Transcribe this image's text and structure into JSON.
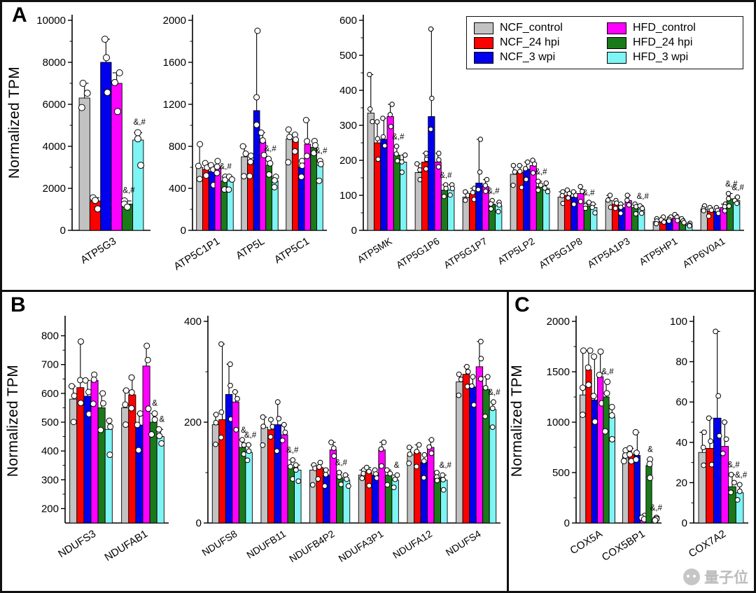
{
  "panels": {
    "a": "A",
    "b": "B",
    "c": "C"
  },
  "ylabel": "Normalized TPM",
  "legend": {
    "entries": [
      {
        "label": "NCF_control",
        "color": "#c2c2c2"
      },
      {
        "label": "NCF_24 hpi",
        "color": "#fe0000"
      },
      {
        "label": "NCF_3 wpi",
        "color": "#0000ee"
      },
      {
        "label": "HFD_control",
        "color": "#ff00ff"
      },
      {
        "label": "HFD_24 hpi",
        "color": "#1a7a1a"
      },
      {
        "label": "HFD_3 wpi",
        "color": "#7ff4f4"
      }
    ]
  },
  "watermark": {
    "text": "量子位",
    "icon": "qbitai-logo"
  },
  "chart_data": [
    {
      "panel": "A",
      "type": "bar",
      "categories": [
        "ATP5G3"
      ],
      "ylim": [
        0,
        10000
      ],
      "yticks": [
        0,
        2000,
        4000,
        6000,
        8000,
        10000
      ],
      "series": [
        {
          "name": "NCF_control",
          "values": [
            6300
          ],
          "err": [
            700
          ]
        },
        {
          "name": "NCF_24 hpi",
          "values": [
            1400
          ],
          "err": [
            150
          ]
        },
        {
          "name": "NCF_3 wpi",
          "values": [
            8000
          ],
          "err": [
            1100
          ]
        },
        {
          "name": "HFD_control",
          "values": [
            7000
          ],
          "err": [
            500
          ]
        },
        {
          "name": "HFD_24 hpi",
          "values": [
            1250
          ],
          "err": [
            150
          ]
        },
        {
          "name": "HFD_3 wpi",
          "values": [
            4300
          ],
          "err": [
            350
          ]
        }
      ],
      "annotations": [
        {
          "category": "ATP5G3",
          "series": "HFD_24 hpi",
          "text": "&,#"
        },
        {
          "category": "ATP5G3",
          "series": "HFD_3 wpi",
          "text": "&,#"
        }
      ]
    },
    {
      "panel": "A",
      "type": "bar",
      "categories": [
        "ATP5C1P1",
        "ATP5L",
        "ATP5C1"
      ],
      "ylim": [
        0,
        2000
      ],
      "yticks": [
        0,
        400,
        800,
        1200,
        1600,
        2000
      ],
      "series": [
        {
          "name": "NCF_control",
          "values": [
            600,
            700,
            870
          ],
          "err": [
            220,
            100,
            90
          ]
        },
        {
          "name": "NCF_24 hpi",
          "values": [
            580,
            640,
            850
          ],
          "err": [
            60,
            70,
            60
          ]
        },
        {
          "name": "NCF_3 wpi",
          "values": [
            560,
            1140,
            600
          ],
          "err": [
            60,
            760,
            60
          ]
        },
        {
          "name": "HFD_control",
          "values": [
            600,
            840,
            820
          ],
          "err": [
            60,
            90,
            230
          ]
        },
        {
          "name": "HFD_24 hpi",
          "values": [
            470,
            620,
            790
          ],
          "err": [
            40,
            60,
            60
          ]
        },
        {
          "name": "HFD_3 wpi",
          "values": [
            470,
            470,
            620
          ],
          "err": [
            40,
            40,
            40
          ]
        }
      ],
      "annotations": [
        {
          "category": "ATP5C1P1",
          "series": "HFD_24 hpi",
          "text": "&,#"
        },
        {
          "category": "ATP5L",
          "series": "HFD_24 hpi",
          "text": "&,#"
        },
        {
          "category": "ATP5C1",
          "series": "HFD_3 wpi",
          "text": "&,#"
        }
      ]
    },
    {
      "panel": "A",
      "type": "bar",
      "categories": [
        "ATP5MK",
        "ATP5G1P6",
        "ATP5G1P7",
        "ATP5LP2",
        "ATP5G1P8",
        "ATP5A1P3",
        "ATP5HP1",
        "ATP6V0A1"
      ],
      "ylim": [
        0,
        600
      ],
      "yticks": [
        0,
        100,
        200,
        300,
        400,
        500,
        600
      ],
      "series": [
        {
          "name": "NCF_control",
          "values": [
            335,
            165,
            95,
            160,
            95,
            85,
            25,
            60
          ],
          "err": [
            110,
            25,
            15,
            25,
            15,
            15,
            8,
            10
          ]
        },
        {
          "name": "NCF_24 hpi",
          "values": [
            250,
            195,
            105,
            165,
            100,
            75,
            30,
            55
          ],
          "err": [
            60,
            25,
            15,
            20,
            15,
            10,
            8,
            10
          ]
        },
        {
          "name": "NCF_3 wpi",
          "values": [
            260,
            325,
            135,
            175,
            95,
            65,
            30,
            55
          ],
          "err": [
            60,
            250,
            125,
            20,
            15,
            10,
            8,
            10
          ]
        },
        {
          "name": "HFD_control",
          "values": [
            325,
            195,
            125,
            185,
            105,
            85,
            35,
            65
          ],
          "err": [
            35,
            25,
            20,
            15,
            20,
            15,
            10,
            10
          ]
        },
        {
          "name": "HFD_24 hpi",
          "values": [
            215,
            115,
            75,
            125,
            70,
            65,
            25,
            90
          ],
          "err": [
            25,
            15,
            10,
            15,
            10,
            10,
            8,
            15
          ]
        },
        {
          "name": "HFD_3 wpi",
          "values": [
            195,
            115,
            70,
            120,
            65,
            60,
            15,
            85
          ],
          "err": [
            20,
            15,
            10,
            15,
            10,
            10,
            5,
            10
          ]
        }
      ],
      "annotations": [
        {
          "category": "ATP5MK",
          "series": "HFD_24 hpi",
          "text": "&,#"
        },
        {
          "category": "ATP5G1P6",
          "series": "HFD_24 hpi",
          "text": "&,#"
        },
        {
          "category": "ATP5G1P7",
          "series": "HFD_24 hpi",
          "text": "&,#"
        },
        {
          "category": "ATP5LP2",
          "series": "HFD_24 hpi",
          "text": "&,#"
        },
        {
          "category": "ATP5G1P8",
          "series": "HFD_24 hpi",
          "text": "&,#"
        },
        {
          "category": "ATP5A1P3",
          "series": "HFD_3 wpi",
          "text": "&,#"
        },
        {
          "category": "ATP6V0A1",
          "series": "HFD_24 hpi",
          "text": "&,#"
        },
        {
          "category": "ATP6V0A1",
          "series": "HFD_3 wpi",
          "text": "&,#"
        }
      ]
    },
    {
      "panel": "B",
      "type": "bar",
      "categories": [
        "NDUFS3",
        "NDUFAB1"
      ],
      "ylim": [
        150,
        850
      ],
      "yticks": [
        200,
        300,
        400,
        500,
        600,
        700,
        800
      ],
      "series": [
        {
          "name": "NCF_control",
          "values": [
            580,
            550
          ],
          "err": [
            45,
            60
          ]
        },
        {
          "name": "NCF_24 hpi",
          "values": [
            620,
            595
          ],
          "err": [
            160,
            60
          ]
        },
        {
          "name": "NCF_3 wpi",
          "values": [
            590,
            490
          ],
          "err": [
            55,
            40
          ]
        },
        {
          "name": "HFD_control",
          "values": [
            645,
            695
          ],
          "err": [
            20,
            70
          ]
        },
        {
          "name": "HFD_24 hpi",
          "values": [
            550,
            500
          ],
          "err": [
            50,
            30
          ]
        },
        {
          "name": "HFD_3 wpi",
          "values": [
            475,
            450
          ],
          "err": [
            30,
            25
          ]
        }
      ],
      "annotations": [
        {
          "category": "NDUFAB1",
          "series": "HFD_24 hpi",
          "text": "&"
        },
        {
          "category": "NDUFAB1",
          "series": "HFD_3 wpi",
          "text": "&"
        }
      ]
    },
    {
      "panel": "B",
      "type": "bar",
      "categories": [
        "NDUFS8",
        "NDUFB11",
        "NDUFB4P2",
        "NDUFA3P1",
        "NDUFA12",
        "NDUFS4"
      ],
      "ylim": [
        0,
        400
      ],
      "yticks": [
        0,
        200,
        400
      ],
      "series": [
        {
          "name": "NCF_control",
          "values": [
            195,
            190,
            105,
            95,
            135,
            280
          ],
          "err": [
            20,
            20,
            10,
            10,
            15,
            15
          ]
        },
        {
          "name": "NCF_24 hpi",
          "values": [
            205,
            185,
            110,
            100,
            140,
            295
          ],
          "err": [
            150,
            20,
            10,
            10,
            15,
            15
          ]
        },
        {
          "name": "NCF_3 wpi",
          "values": [
            255,
            195,
            95,
            95,
            120,
            270
          ],
          "err": [
            60,
            45,
            10,
            10,
            15,
            20
          ]
        },
        {
          "name": "HFD_control",
          "values": [
            240,
            175,
            145,
            145,
            150,
            310
          ],
          "err": [
            20,
            20,
            15,
            15,
            15,
            50
          ]
        },
        {
          "name": "HFD_24 hpi",
          "values": [
            150,
            110,
            90,
            95,
            90,
            265
          ],
          "err": [
            15,
            15,
            10,
            10,
            10,
            25
          ]
        },
        {
          "name": "HFD_3 wpi",
          "values": [
            140,
            105,
            85,
            85,
            85,
            225
          ],
          "err": [
            15,
            10,
            10,
            10,
            10,
            15
          ]
        }
      ],
      "annotations": [
        {
          "category": "NDUFS8",
          "series": "HFD_24 hpi",
          "text": "&"
        },
        {
          "category": "NDUFS8",
          "series": "HFD_3 wpi",
          "text": "&,#"
        },
        {
          "category": "NDUFB11",
          "series": "HFD_24 hpi",
          "text": "&,#"
        },
        {
          "category": "NDUFB4P2",
          "series": "HFD_24 hpi",
          "text": "&,#"
        },
        {
          "category": "NDUFA3P1",
          "series": "HFD_3 wpi",
          "text": "&"
        },
        {
          "category": "NDUFA12",
          "series": "HFD_3 wpi",
          "text": "&,#"
        },
        {
          "category": "NDUFS4",
          "series": "HFD_3 wpi",
          "text": "&,#"
        }
      ]
    },
    {
      "panel": "C",
      "type": "bar",
      "categories": [
        "COX5A",
        "COX5BP1"
      ],
      "ylim": [
        0,
        2000
      ],
      "yticks": [
        0,
        500,
        1000,
        1500,
        2000
      ],
      "series": [
        {
          "name": "NCF_control",
          "values": [
            1270,
            660
          ],
          "err": [
            440,
            60
          ]
        },
        {
          "name": "NCF_24 hpi",
          "values": [
            1520,
            680
          ],
          "err": [
            190,
            60
          ]
        },
        {
          "name": "NCF_3 wpi",
          "values": [
            1220,
            670
          ],
          "err": [
            430,
            230
          ]
        },
        {
          "name": "HFD_control",
          "values": [
            1450,
            50
          ],
          "err": [
            250,
            20
          ]
        },
        {
          "name": "HFD_24 hpi",
          "values": [
            1250,
            570
          ],
          "err": [
            150,
            60
          ]
        },
        {
          "name": "HFD_3 wpi",
          "values": [
            1050,
            35
          ],
          "err": [
            100,
            15
          ]
        }
      ],
      "annotations": [
        {
          "category": "COX5A",
          "series": "HFD_24 hpi",
          "text": "&,#"
        },
        {
          "category": "COX5BP1",
          "series": "HFD_24 hpi",
          "text": "&"
        },
        {
          "category": "COX5BP1",
          "series": "HFD_3 wpi",
          "text": "&,#"
        }
      ]
    },
    {
      "panel": "C",
      "type": "bar",
      "categories": [
        "COX7A2"
      ],
      "ylim": [
        0,
        100
      ],
      "yticks": [
        0,
        20,
        40,
        60,
        80,
        100
      ],
      "series": [
        {
          "name": "NCF_control",
          "values": [
            35
          ],
          "err": [
            10
          ]
        },
        {
          "name": "NCF_24 hpi",
          "values": [
            37
          ],
          "err": [
            15
          ]
        },
        {
          "name": "NCF_3 wpi",
          "values": [
            52
          ],
          "err": [
            43
          ]
        },
        {
          "name": "HFD_control",
          "values": [
            38
          ],
          "err": [
            12
          ]
        },
        {
          "name": "HFD_24 hpi",
          "values": [
            18
          ],
          "err": [
            6
          ]
        },
        {
          "name": "HFD_3 wpi",
          "values": [
            15
          ],
          "err": [
            4
          ]
        }
      ],
      "annotations": [
        {
          "category": "COX7A2",
          "series": "HFD_24 hpi",
          "text": "&,#"
        },
        {
          "category": "COX7A2",
          "series": "HFD_3 wpi",
          "text": "&,#"
        }
      ]
    }
  ]
}
